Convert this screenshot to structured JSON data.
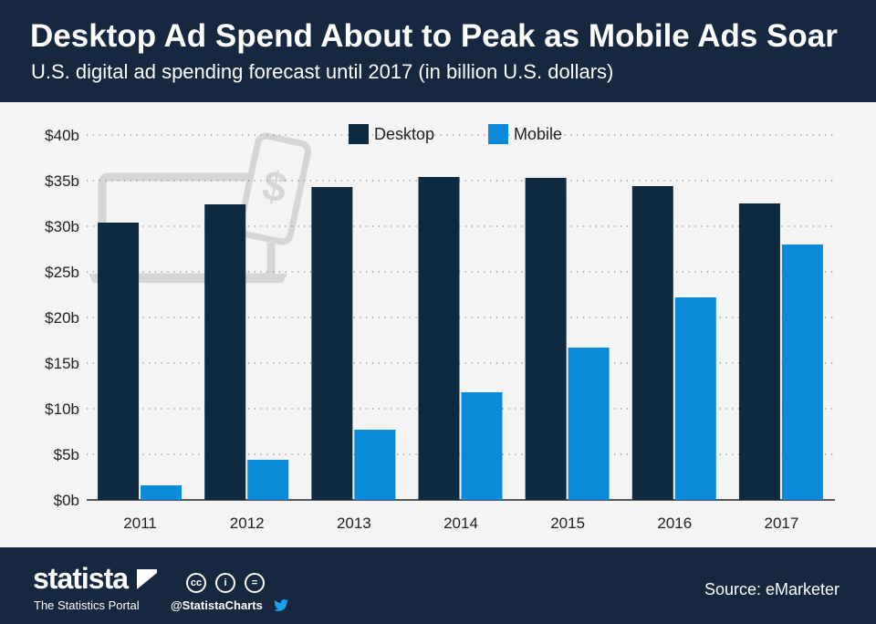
{
  "header": {
    "title": "Desktop Ad Spend About to Peak as Mobile Ads Soar",
    "subtitle": "U.S. digital ad spending forecast until 2017 (in billion U.S. dollars)"
  },
  "footer": {
    "brand": "statista",
    "portal": "The Statistics Portal",
    "handle": "@StatistaCharts",
    "source": "Source: eMarketer",
    "license_icons": [
      "cc",
      "i",
      "="
    ]
  },
  "colors": {
    "header_bg": "#162840",
    "desktop": "#0e2a40",
    "mobile": "#0a8ad8",
    "background": "#f4f4f4"
  },
  "chart_data": {
    "type": "bar",
    "title": "Desktop Ad Spend About to Peak as Mobile Ads Soar",
    "subtitle": "U.S. digital ad spending forecast until 2017 (in billion U.S. dollars)",
    "categories": [
      "2011",
      "2012",
      "2013",
      "2014",
      "2015",
      "2016",
      "2017"
    ],
    "series": [
      {
        "name": "Desktop",
        "color": "#0e2a40",
        "values": [
          30.4,
          32.4,
          34.3,
          35.4,
          35.3,
          34.4,
          32.5
        ]
      },
      {
        "name": "Mobile",
        "color": "#0a8ad8",
        "values": [
          1.6,
          4.4,
          7.7,
          11.8,
          16.7,
          22.2,
          28.0
        ]
      }
    ],
    "ylim": [
      0,
      40
    ],
    "yticks": [
      0,
      5,
      10,
      15,
      20,
      25,
      30,
      35,
      40
    ],
    "ytick_labels": [
      "$0b",
      "$5b",
      "$10b",
      "$15b",
      "$20b",
      "$25b",
      "$30b",
      "$35b",
      "$40b"
    ],
    "grid": "dotted horizontal",
    "legend_position": "top-center",
    "decoration": "laptop and smartphone with dollar sign"
  }
}
